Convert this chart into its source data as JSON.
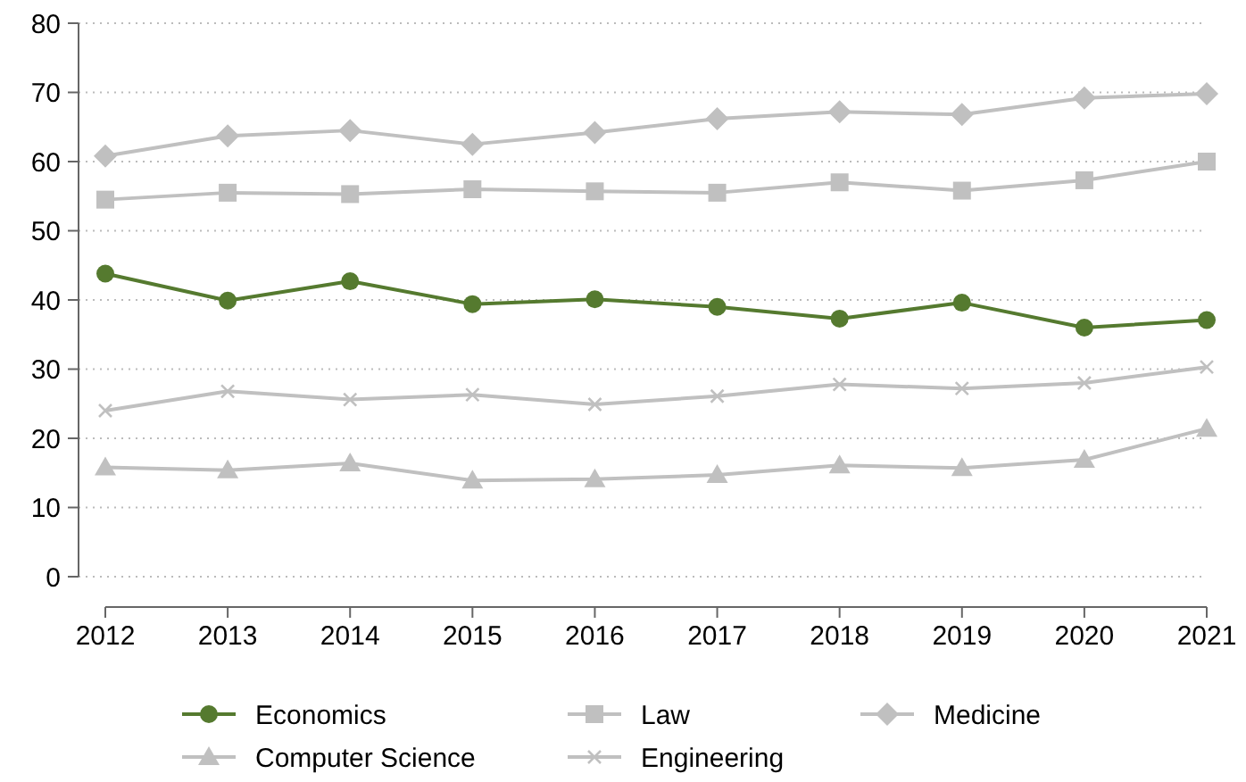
{
  "chart_data": {
    "type": "line",
    "x": [
      2012,
      2013,
      2014,
      2015,
      2016,
      2017,
      2018,
      2019,
      2020,
      2021
    ],
    "xlim": [
      2012,
      2021
    ],
    "xticks": [
      2012,
      2013,
      2014,
      2015,
      2016,
      2017,
      2018,
      2019,
      2020,
      2021
    ],
    "ylim": [
      0,
      80
    ],
    "yticks": [
      0,
      10,
      20,
      30,
      40,
      50,
      60,
      70,
      80
    ],
    "grid": "y",
    "legend": "bottom",
    "line_style": "solid",
    "series": [
      {
        "name": "Economics",
        "color": "#557a2f",
        "marker": "circle",
        "values": [
          43.8,
          39.9,
          42.7,
          39.4,
          40.1,
          39.0,
          37.3,
          39.6,
          36.0,
          37.1
        ]
      },
      {
        "name": "Law",
        "color": "#c0c0c0",
        "marker": "square",
        "values": [
          54.5,
          55.5,
          55.3,
          56.0,
          55.7,
          55.5,
          57.0,
          55.8,
          57.3,
          60.0
        ]
      },
      {
        "name": "Medicine",
        "color": "#c0c0c0",
        "marker": "diamond",
        "values": [
          60.8,
          63.7,
          64.5,
          62.5,
          64.2,
          66.2,
          67.2,
          66.8,
          69.2,
          69.8
        ]
      },
      {
        "name": "Computer Science",
        "color": "#c0c0c0",
        "marker": "triangle",
        "values": [
          15.8,
          15.4,
          16.4,
          13.9,
          14.1,
          14.7,
          16.1,
          15.7,
          16.9,
          21.4
        ]
      },
      {
        "name": "Engineering",
        "color": "#c0c0c0",
        "marker": "cross",
        "values": [
          24.0,
          26.8,
          25.6,
          26.3,
          24.9,
          26.1,
          27.8,
          27.2,
          28.0,
          30.3
        ]
      }
    ]
  }
}
